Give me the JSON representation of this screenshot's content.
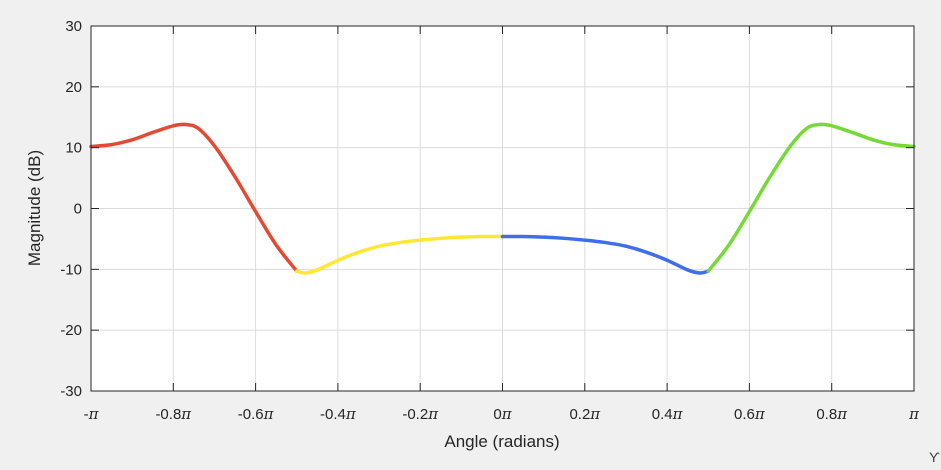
{
  "colors": {
    "background": "#f0f0f0",
    "axes_background": "#ffffff",
    "grid": "#dcdcdc",
    "axis": "#262626",
    "segment_1": "#e34a33",
    "segment_2": "#ffe733",
    "segment_3": "#3f6ee8",
    "segment_4": "#75d936"
  },
  "corner_glyph": "ϒ",
  "chart_data": {
    "type": "line",
    "title": "",
    "xlabel": "Angle (radians)",
    "ylabel": "Magnitude (dB)",
    "xlim": [
      -1,
      1
    ],
    "ylim": [
      -30,
      30
    ],
    "x_unit": "π rad",
    "grid": true,
    "x_ticks": [
      -1,
      -0.8,
      -0.6,
      -0.4,
      -0.2,
      0,
      0.2,
      0.4,
      0.6,
      0.8,
      1
    ],
    "x_tick_labels": [
      "-π",
      "-0.8π",
      "-0.6π",
      "-0.4π",
      "-0.2π",
      "0π",
      "0.2π",
      "0.4π",
      "0.6π",
      "0.8π",
      "π"
    ],
    "y_ticks": [
      -30,
      -20,
      -10,
      0,
      10,
      20,
      30
    ],
    "y_tick_labels": [
      "-30",
      "-20",
      "-10",
      "0",
      "10",
      "20",
      "30"
    ],
    "series": [
      {
        "color": "#e34a33",
        "x": [
          -1,
          -0.95,
          -0.9,
          -0.85,
          -0.8,
          -0.77,
          -0.74,
          -0.7,
          -0.65,
          -0.6,
          -0.55,
          -0.5
        ],
        "y": [
          10.2,
          10.5,
          11.3,
          12.5,
          13.6,
          13.8,
          13.2,
          10.3,
          5.2,
          -0.5,
          -6.0,
          -10.3
        ]
      },
      {
        "color": "#ffe733",
        "x": [
          -0.5,
          -0.48,
          -0.45,
          -0.4,
          -0.35,
          -0.3,
          -0.25,
          -0.2,
          -0.15,
          -0.1,
          -0.05,
          0
        ],
        "y": [
          -10.3,
          -10.6,
          -10.1,
          -8.5,
          -7.2,
          -6.2,
          -5.6,
          -5.2,
          -4.9,
          -4.7,
          -4.6,
          -4.6
        ]
      },
      {
        "color": "#3f6ee8",
        "x": [
          0,
          0.05,
          0.1,
          0.15,
          0.2,
          0.25,
          0.3,
          0.35,
          0.4,
          0.45,
          0.48,
          0.5
        ],
        "y": [
          -4.6,
          -4.6,
          -4.7,
          -4.9,
          -5.2,
          -5.6,
          -6.2,
          -7.2,
          -8.5,
          -10.1,
          -10.6,
          -10.3
        ]
      },
      {
        "color": "#75d936",
        "x": [
          0.5,
          0.55,
          0.6,
          0.65,
          0.7,
          0.74,
          0.77,
          0.8,
          0.85,
          0.9,
          0.95,
          1
        ],
        "y": [
          -10.3,
          -6.0,
          -0.5,
          5.2,
          10.3,
          13.2,
          13.8,
          13.6,
          12.5,
          11.3,
          10.5,
          10.2
        ]
      }
    ]
  }
}
